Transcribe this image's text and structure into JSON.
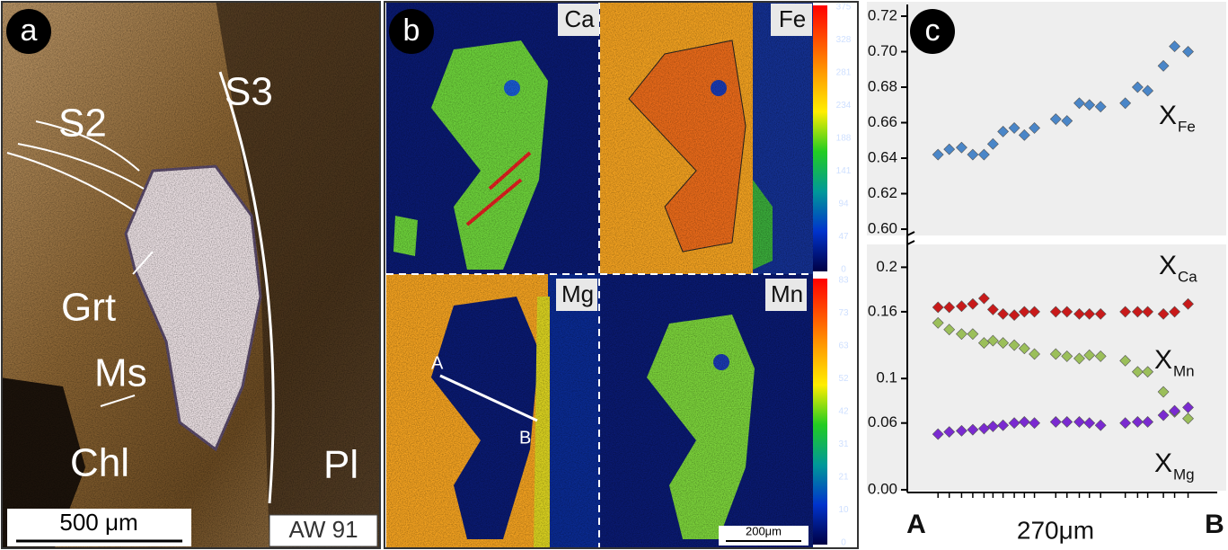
{
  "panel_a": {
    "label": "a",
    "texts": [
      "S2",
      "S3",
      "Grt",
      "Ms",
      "Chl",
      "Pl"
    ],
    "scale": "500 μm",
    "sample": "AW 91"
  },
  "panel_b": {
    "label": "b",
    "maps": [
      "Ca",
      "Fe",
      "Mg",
      "Mn"
    ],
    "scale_top": [
      "375",
      "328",
      "281",
      "234",
      "188",
      "141",
      "94",
      "47",
      "0"
    ],
    "scale_bottom": [
      "83",
      "73",
      "63",
      "52",
      "42",
      "31",
      "21",
      "10",
      "0"
    ],
    "profile_start": "A",
    "profile_end": "B",
    "scale": "200μm"
  },
  "panel_c": {
    "label": "c",
    "start": "A",
    "end": "B",
    "length": "270μm"
  },
  "chart_data": [
    {
      "type": "scatter",
      "x": [
        21,
        31,
        42,
        52,
        62,
        70,
        79,
        89,
        98,
        107,
        126,
        136,
        147,
        156,
        166,
        188,
        199,
        208,
        222,
        232,
        244
      ],
      "xlim": [
        0,
        270
      ],
      "ylim": [
        0.6,
        0.72
      ],
      "yticks": [
        {
          "value": 0.6,
          "label": "0.60"
        },
        0.62,
        0.64,
        0.66,
        0.68,
        {
          "value": 0.7,
          "label": "0.70"
        },
        0.72
      ],
      "series": [
        {
          "name": "X",
          "subscript": "Fe",
          "color": "#4a86c8",
          "values": [
            0.642,
            0.645,
            0.646,
            0.642,
            0.642,
            0.648,
            0.655,
            0.657,
            0.653,
            0.657,
            0.662,
            0.661,
            0.671,
            0.67,
            0.669,
            0.671,
            0.68,
            0.678,
            0.692,
            0.703,
            0.7
          ]
        }
      ]
    },
    {
      "type": "scatter",
      "x": [
        21,
        31,
        42,
        52,
        62,
        70,
        79,
        89,
        98,
        107,
        126,
        136,
        147,
        156,
        166,
        188,
        199,
        208,
        222,
        232,
        244
      ],
      "xlim": [
        0,
        270
      ],
      "ylim": [
        0,
        0.21
      ],
      "yticks": [
        {
          "value": 0,
          "label": "0.00"
        },
        0.06,
        0.1,
        0.16,
        0.2
      ],
      "series": [
        {
          "name": "X",
          "subscript": "Ca",
          "color": "#c81a1a",
          "values": [
            0.164,
            0.164,
            0.165,
            0.167,
            0.172,
            0.162,
            0.158,
            0.157,
            0.16,
            0.16,
            0.16,
            0.16,
            0.158,
            0.158,
            0.158,
            0.16,
            0.16,
            0.16,
            0.158,
            0.16,
            0.167
          ]
        },
        {
          "name": "X",
          "subscript": "Mn",
          "color": "#9bbf5a",
          "values": [
            0.15,
            0.144,
            0.14,
            0.14,
            0.132,
            0.134,
            0.132,
            0.13,
            0.127,
            0.122,
            0.122,
            0.12,
            0.118,
            0.121,
            0.12,
            0.116,
            0.106,
            0.106,
            0.088,
            0.07,
            0.064
          ]
        },
        {
          "name": "X",
          "subscript": "Mg",
          "color": "#7a2ad0",
          "values": [
            0.05,
            0.052,
            0.053,
            0.054,
            0.055,
            0.057,
            0.058,
            0.06,
            0.061,
            0.06,
            0.061,
            0.061,
            0.061,
            0.06,
            0.058,
            0.06,
            0.061,
            0.061,
            0.067,
            0.071,
            0.074
          ]
        }
      ]
    }
  ]
}
